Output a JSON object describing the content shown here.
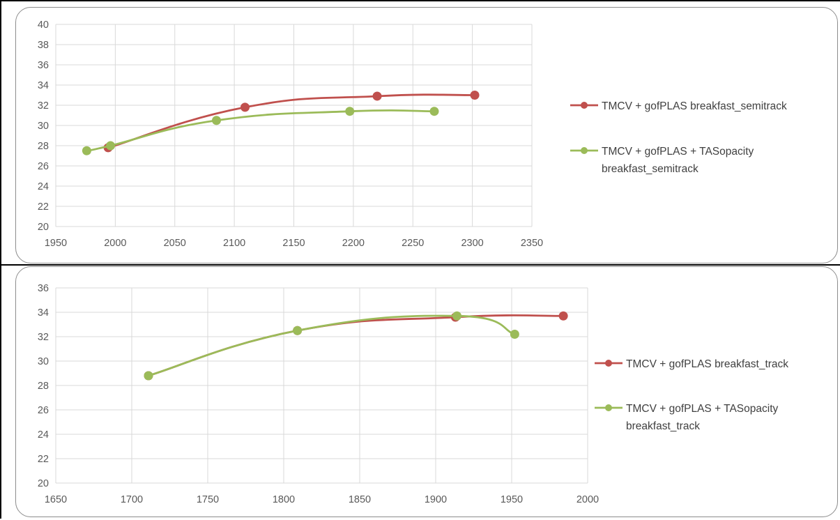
{
  "colors": {
    "series_red": "#c0504d",
    "series_green": "#9bbb59",
    "grid": "#d9d9d9",
    "axis_text": "#595959",
    "frame": "#8c8c8c"
  },
  "chart_data": [
    {
      "type": "scatter",
      "smooth_lines": true,
      "xlim": [
        1950,
        2350
      ],
      "ylim": [
        20,
        40
      ],
      "x_ticks": [
        1950,
        2000,
        2050,
        2100,
        2150,
        2200,
        2250,
        2300,
        2350
      ],
      "y_ticks": [
        20,
        22,
        24,
        26,
        28,
        30,
        32,
        34,
        36,
        38,
        40
      ],
      "grid": "vertical and horizontal",
      "legend_position": "right",
      "series": [
        {
          "name": "TMCV + gofPLAS breakfast_semitrack",
          "name_lines": [
            "TMCV + gofPLAS breakfast_semitrack"
          ],
          "color": "#c0504d",
          "points": [
            [
              1994,
              27.8
            ],
            [
              2109,
              31.8
            ],
            [
              2220,
              32.9
            ],
            [
              2302,
              33.0
            ]
          ]
        },
        {
          "name": "TMCV + gofPLAS + TASopacity breakfast_semitrack",
          "name_lines": [
            "TMCV + gofPLAS + TASopacity",
            "breakfast_semitrack"
          ],
          "color": "#9bbb59",
          "points": [
            [
              1976,
              27.5
            ],
            [
              1996,
              28.0
            ],
            [
              2085,
              30.5
            ],
            [
              2197,
              31.4
            ],
            [
              2268,
              31.4
            ]
          ]
        }
      ]
    },
    {
      "type": "scatter",
      "smooth_lines": true,
      "xlim": [
        1650,
        2000
      ],
      "ylim": [
        20,
        36
      ],
      "x_ticks": [
        1650,
        1700,
        1750,
        1800,
        1850,
        1900,
        1950,
        2000
      ],
      "y_ticks": [
        20,
        22,
        24,
        26,
        28,
        30,
        32,
        34,
        36
      ],
      "grid": "vertical and horizontal",
      "legend_position": "right",
      "series": [
        {
          "name": "TMCV + gofPLAS breakfast_track",
          "name_lines": [
            "TMCV + gofPLAS breakfast_track"
          ],
          "color": "#c0504d",
          "points": [
            [
              1711,
              28.8
            ],
            [
              1809,
              32.5
            ],
            [
              1913,
              33.6
            ],
            [
              1984,
              33.7
            ]
          ]
        },
        {
          "name": "TMCV + gofPLAS + TASopacity breakfast_track",
          "name_lines": [
            "TMCV + gofPLAS + TASopacity",
            "breakfast_track"
          ],
          "color": "#9bbb59",
          "points": [
            [
              1711,
              28.8
            ],
            [
              1809,
              32.5
            ],
            [
              1914,
              33.7
            ],
            [
              1952,
              32.2
            ]
          ]
        }
      ]
    }
  ]
}
